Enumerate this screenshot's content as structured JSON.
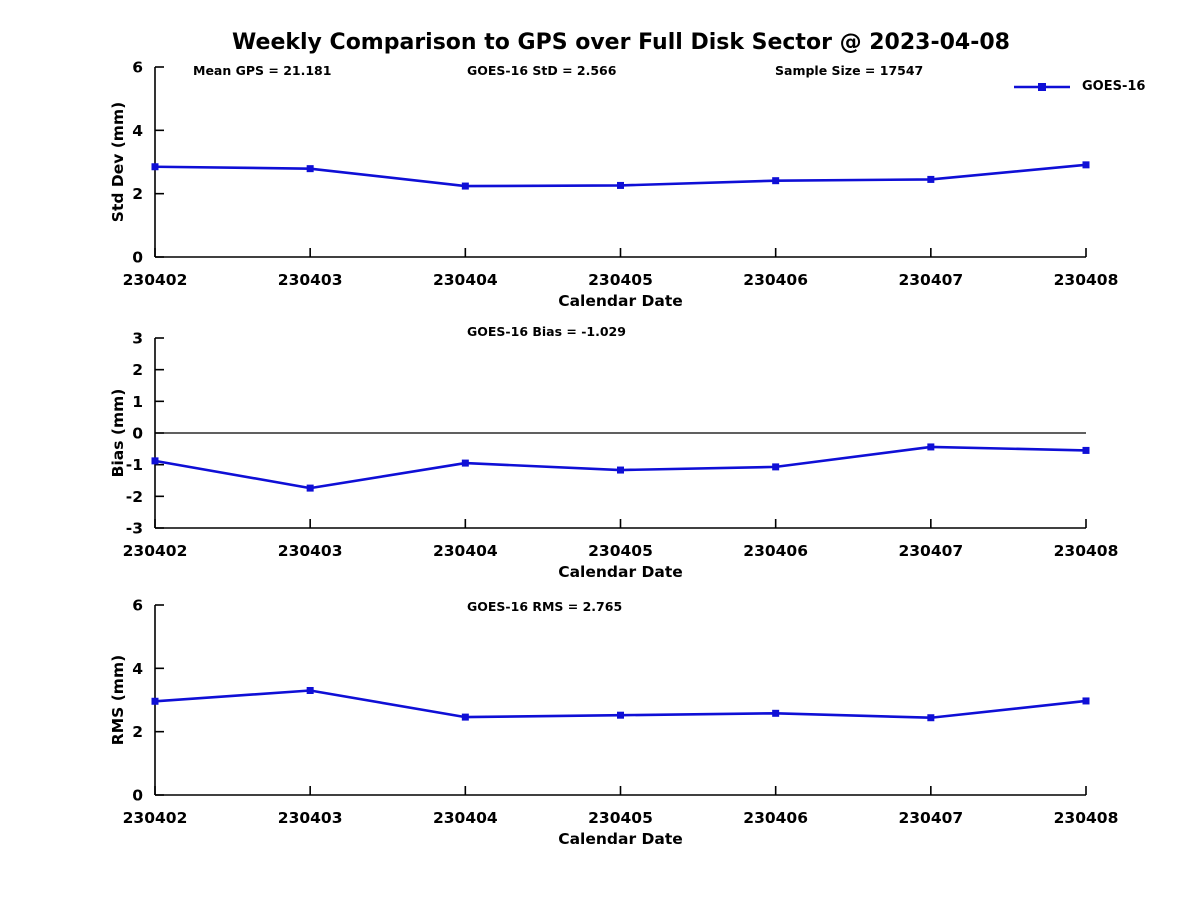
{
  "title": "Weekly Comparison to GPS over Full Disk Sector @ 2023-04-08",
  "legend": {
    "label": "GOES-16",
    "color": "#0f0fd6"
  },
  "text_color": "#000000",
  "chart_data": [
    {
      "id": "stddev",
      "type": "line",
      "ylabel": "Std Dev (mm)",
      "xlabel": "Calendar Date",
      "ylim": [
        0,
        6
      ],
      "yticks": [
        0,
        2,
        4,
        6
      ],
      "grid": false,
      "legend_position": "top-right",
      "annotations": [
        {
          "slot": "left",
          "text": "Mean GPS = 21.181"
        },
        {
          "slot": "center",
          "text": "GOES-16 StD = 2.566"
        },
        {
          "slot": "right",
          "text": "Sample Size = 17547"
        }
      ],
      "categories": [
        "230402",
        "230403",
        "230404",
        "230405",
        "230406",
        "230407",
        "230408"
      ],
      "series": [
        {
          "name": "GOES-16",
          "values": [
            2.85,
            2.79,
            2.24,
            2.26,
            2.41,
            2.45,
            2.91
          ]
        }
      ],
      "zero_line": false
    },
    {
      "id": "bias",
      "type": "line",
      "ylabel": "Bias (mm)",
      "xlabel": "Calendar Date",
      "ylim": [
        -3,
        3
      ],
      "yticks": [
        -3,
        -2,
        -1,
        0,
        1,
        2,
        3
      ],
      "grid": false,
      "annotations": [
        {
          "slot": "center",
          "text": "GOES-16 Bias  = -1.029"
        }
      ],
      "categories": [
        "230402",
        "230403",
        "230404",
        "230405",
        "230406",
        "230407",
        "230408"
      ],
      "series": [
        {
          "name": "GOES-16",
          "values": [
            -0.88,
            -1.74,
            -0.95,
            -1.17,
            -1.07,
            -0.44,
            -0.55
          ]
        }
      ],
      "zero_line": true
    },
    {
      "id": "rms",
      "type": "line",
      "ylabel": "RMS (mm)",
      "xlabel": "Calendar Date",
      "ylim": [
        0,
        6
      ],
      "yticks": [
        0,
        2,
        4,
        6
      ],
      "grid": false,
      "annotations": [
        {
          "slot": "center",
          "text": "GOES-16 RMS = 2.765"
        }
      ],
      "categories": [
        "230402",
        "230403",
        "230404",
        "230405",
        "230406",
        "230407",
        "230408"
      ],
      "series": [
        {
          "name": "GOES-16",
          "values": [
            2.96,
            3.3,
            2.46,
            2.52,
            2.58,
            2.44,
            2.97
          ]
        }
      ],
      "zero_line": false
    }
  ]
}
